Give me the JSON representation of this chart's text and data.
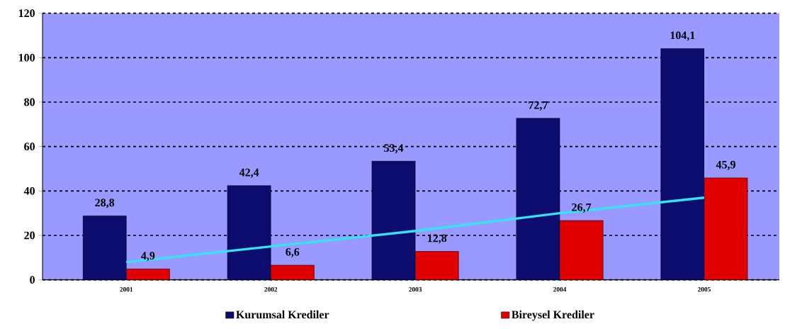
{
  "chart_data": {
    "type": "bar",
    "categories": [
      "2001",
      "2002",
      "2003",
      "2004",
      "2005"
    ],
    "series": [
      {
        "name": "Kurumsal Krediler",
        "color": "#0c0c6e",
        "values": [
          28.8,
          42.4,
          53.4,
          72.7,
          104.1
        ],
        "value_labels": [
          "28,8",
          "42,4",
          "53,4",
          "72,7",
          "104,1"
        ]
      },
      {
        "name": "Bireysel Krediler",
        "color": "#e00000",
        "values": [
          4.9,
          6.6,
          12.8,
          26.7,
          45.9
        ],
        "value_labels": [
          "4,9",
          "6,6",
          "12,8",
          "26,7",
          "45,9"
        ]
      },
      {
        "type": "line",
        "color": "#33e5f0",
        "values": [
          8,
          15,
          22,
          30,
          37
        ]
      }
    ],
    "ylim": [
      0,
      120
    ],
    "yticks": [
      0,
      20,
      40,
      60,
      80,
      100,
      120
    ],
    "grid": "y",
    "legend": "bottom"
  }
}
